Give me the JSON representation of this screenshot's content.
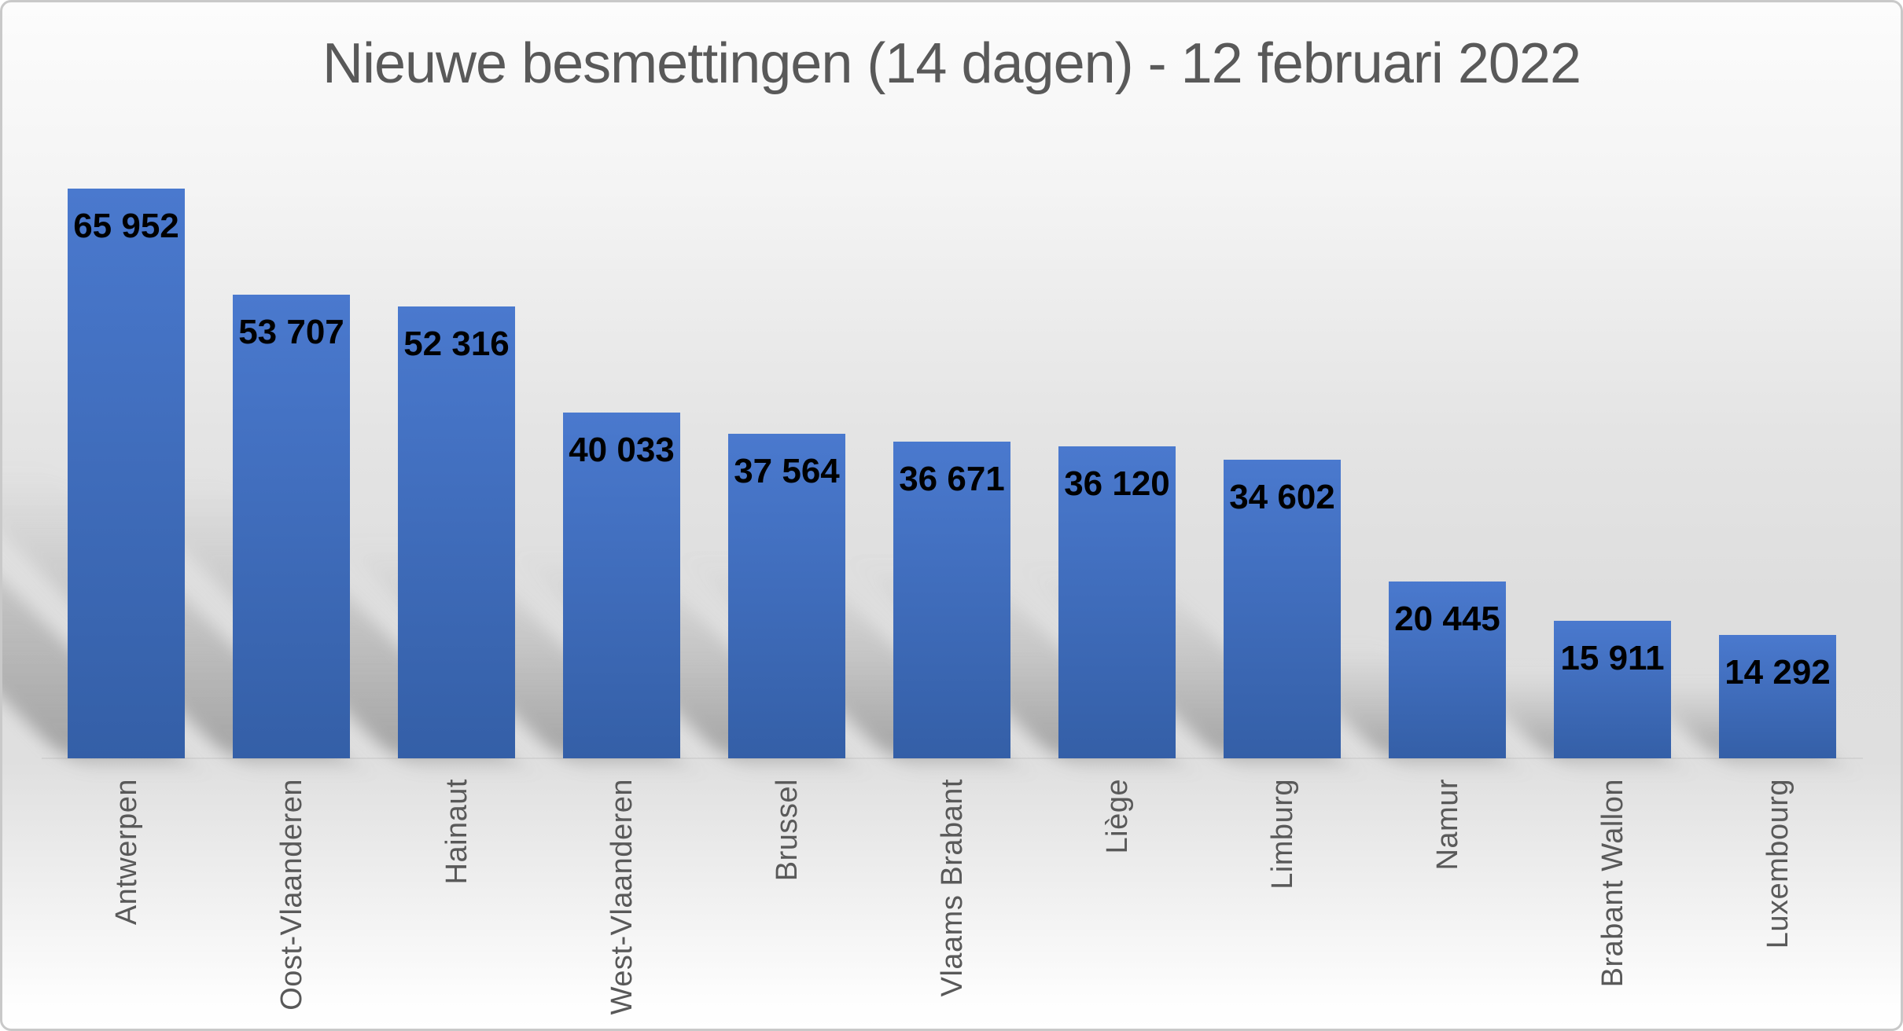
{
  "chart_data": {
    "type": "bar",
    "title": "Nieuwe besmettingen (14 dagen) - 12 februari 2022",
    "categories": [
      "Antwerpen",
      "Oost-Vlaanderen",
      "Hainaut",
      "West-Vlaanderen",
      "Brussel",
      "Vlaams Brabant",
      "Liège",
      "Limburg",
      "Namur",
      "Brabant Wallon",
      "Luxembourg"
    ],
    "values": [
      65952,
      53707,
      52316,
      40033,
      37564,
      36671,
      36120,
      34602,
      20445,
      15911,
      14292
    ],
    "value_labels": [
      "65 952",
      "53 707",
      "52 316",
      "40 033",
      "37 564",
      "36 671",
      "36 120",
      "34 602",
      "20 445",
      "15 911",
      "14 292"
    ],
    "xlabel": "",
    "ylabel": "",
    "ylim": [
      0,
      65952
    ],
    "grid": false,
    "legend": false,
    "value_label_position": "inside-top",
    "category_label_rotation": -90,
    "colors": {
      "bar_gradient_top": "#4a79ce",
      "bar_gradient_bottom": "#345fa7",
      "value_label": "#000000",
      "category_label": "#595959",
      "title": "#595959",
      "background_top": "#fcfcfc",
      "background_mid": "#dedede",
      "background_bottom": "#fdfdfd",
      "frame_border": "#c9c9c9"
    }
  }
}
